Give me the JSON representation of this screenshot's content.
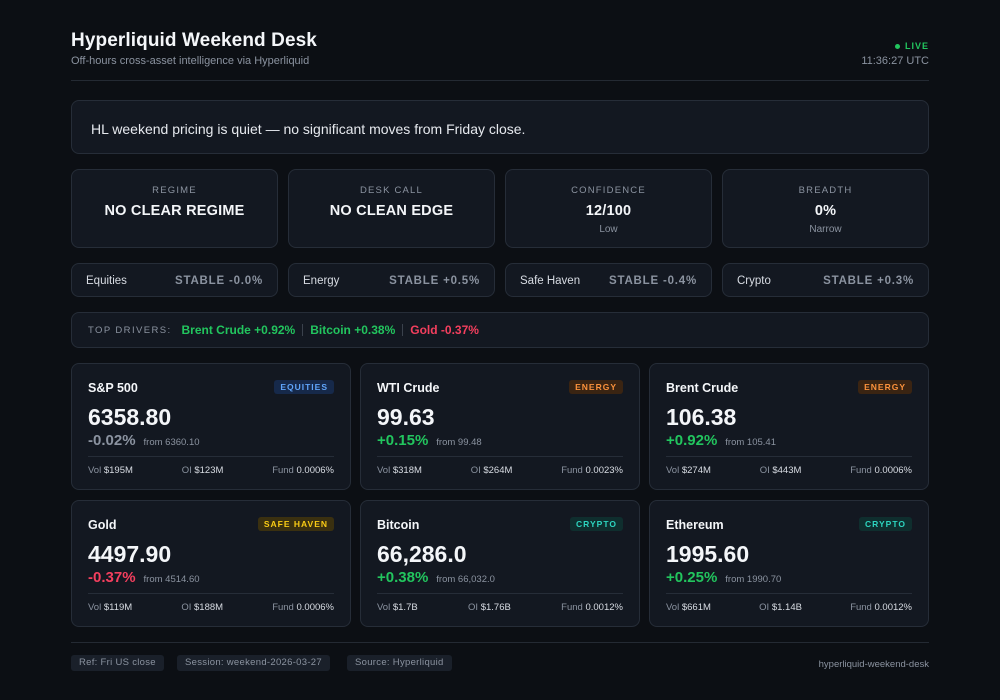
{
  "header": {
    "title": "Hyperliquid Weekend Desk",
    "subtitle": "Off-hours cross-asset intelligence via Hyperliquid",
    "live_label": "LIVE",
    "time": "11:36:27 UTC"
  },
  "banner": {
    "text": "HL weekend pricing is quiet — no significant moves from Friday close."
  },
  "stats": [
    {
      "label": "REGIME",
      "value": "NO CLEAR REGIME",
      "sub": ""
    },
    {
      "label": "DESK CALL",
      "value": "NO CLEAN EDGE",
      "sub": ""
    },
    {
      "label": "CONFIDENCE",
      "value": "12/100",
      "sub": "Low"
    },
    {
      "label": "BREADTH",
      "value": "0%",
      "sub": "Narrow"
    }
  ],
  "sectors": [
    {
      "name": "Equities",
      "value": "STABLE -0.0%"
    },
    {
      "name": "Energy",
      "value": "STABLE +0.5%"
    },
    {
      "name": "Safe Haven",
      "value": "STABLE -0.4%"
    },
    {
      "name": "Crypto",
      "value": "STABLE +0.3%"
    }
  ],
  "drivers": {
    "label": "TOP DRIVERS:",
    "items": [
      {
        "text": "Brent Crude +0.92%",
        "direction": "up"
      },
      {
        "text": "Bitcoin +0.38%",
        "direction": "up"
      },
      {
        "text": "Gold -0.37%",
        "direction": "down"
      }
    ]
  },
  "assets": [
    {
      "name": "S&P 500",
      "badge": "EQUITIES",
      "badge_type": "equities",
      "price": "6358.80",
      "change": "-0.02%",
      "direction": "flat",
      "from": "from 6360.10",
      "vol_label": "Vol",
      "vol": "$195M",
      "oi_label": "OI",
      "oi": "$123M",
      "fund_label": "Fund",
      "fund": "0.0006%"
    },
    {
      "name": "WTI Crude",
      "badge": "ENERGY",
      "badge_type": "energy",
      "price": "99.63",
      "change": "+0.15%",
      "direction": "up",
      "from": "from 99.48",
      "vol_label": "Vol",
      "vol": "$318M",
      "oi_label": "OI",
      "oi": "$264M",
      "fund_label": "Fund",
      "fund": "0.0023%"
    },
    {
      "name": "Brent Crude",
      "badge": "ENERGY",
      "badge_type": "energy",
      "price": "106.38",
      "change": "+0.92%",
      "direction": "up",
      "from": "from 105.41",
      "vol_label": "Vol",
      "vol": "$274M",
      "oi_label": "OI",
      "oi": "$443M",
      "fund_label": "Fund",
      "fund": "0.0006%"
    },
    {
      "name": "Gold",
      "badge": "SAFE HAVEN",
      "badge_type": "safe",
      "price": "4497.90",
      "change": "-0.37%",
      "direction": "down",
      "from": "from 4514.60",
      "vol_label": "Vol",
      "vol": "$119M",
      "oi_label": "OI",
      "oi": "$188M",
      "fund_label": "Fund",
      "fund": "0.0006%"
    },
    {
      "name": "Bitcoin",
      "badge": "CRYPTO",
      "badge_type": "crypto",
      "price": "66,286.0",
      "change": "+0.38%",
      "direction": "up",
      "from": "from 66,032.0",
      "vol_label": "Vol",
      "vol": "$1.7B",
      "oi_label": "OI",
      "oi": "$1.76B",
      "fund_label": "Fund",
      "fund": "0.0012%"
    },
    {
      "name": "Ethereum",
      "badge": "CRYPTO",
      "badge_type": "crypto",
      "price": "1995.60",
      "change": "+0.25%",
      "direction": "up",
      "from": "from 1990.70",
      "vol_label": "Vol",
      "vol": "$661M",
      "oi_label": "OI",
      "oi": "$1.14B",
      "fund_label": "Fund",
      "fund": "0.0012%"
    }
  ],
  "footer": {
    "tags": [
      "Ref: Fri US close",
      "Session: weekend-2026-03-27",
      "Source: Hyperliquid"
    ],
    "right": "hyperliquid-weekend-desk"
  },
  "colors": {
    "up": "#22c55e",
    "down": "#f43f5e",
    "flat": "#8b93a0",
    "background": "#0c0f14",
    "card": "#131821"
  }
}
